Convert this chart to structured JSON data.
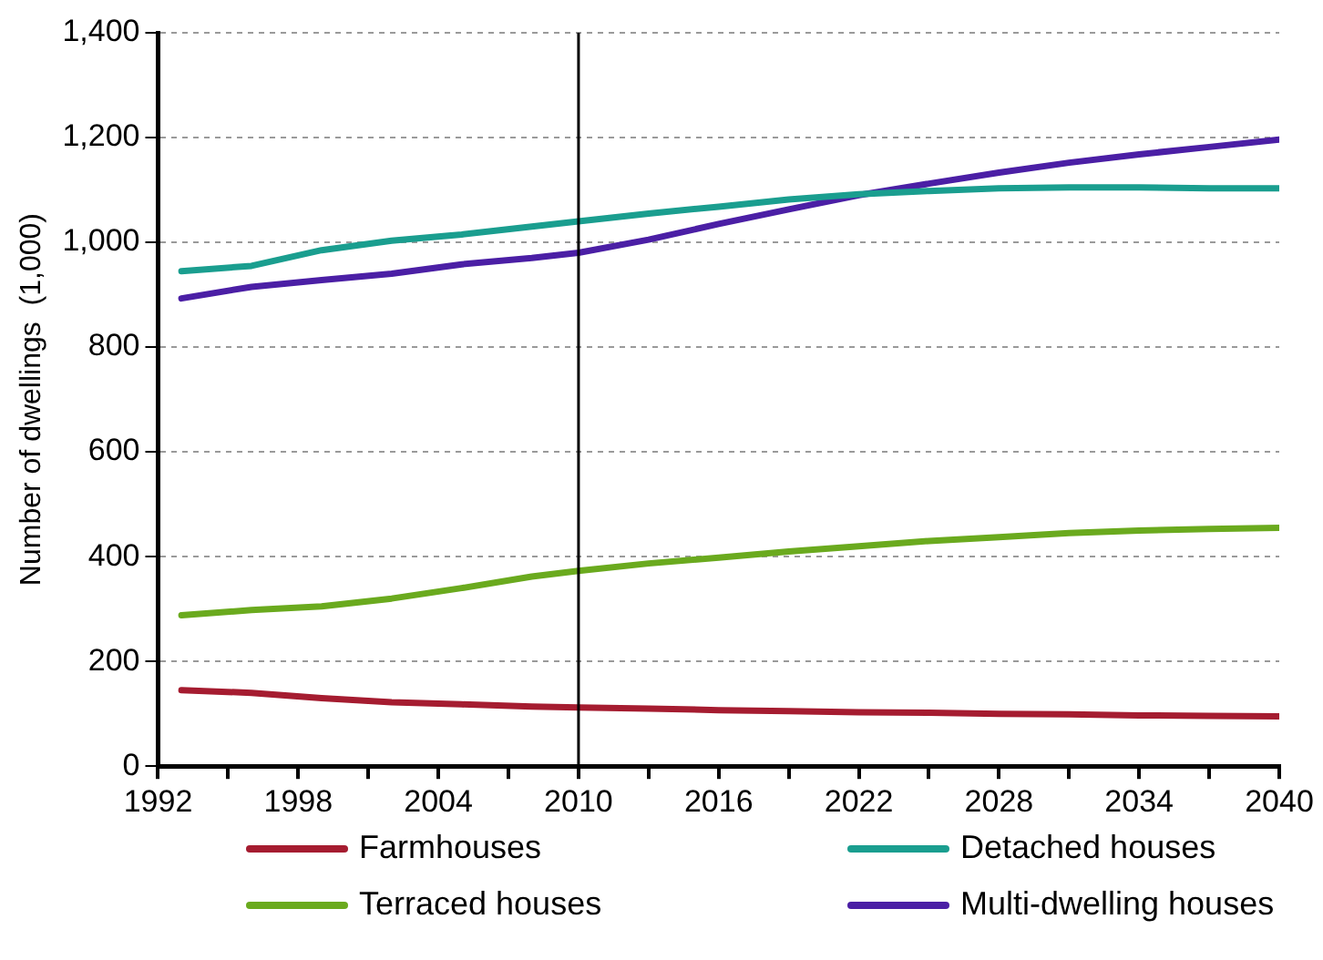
{
  "chart_data": {
    "type": "line",
    "ylabel": "Number of dwellings  (1,000)",
    "x": [
      1993,
      1996,
      1999,
      2002,
      2005,
      2008,
      2010,
      2013,
      2016,
      2019,
      2022,
      2025,
      2028,
      2031,
      2034,
      2037,
      2040
    ],
    "series": [
      {
        "name": "Farmhouses",
        "color": "#a51c30",
        "values": [
          145,
          140,
          130,
          122,
          118,
          114,
          112,
          110,
          107,
          105,
          103,
          102,
          100,
          99,
          97,
          96,
          95
        ]
      },
      {
        "name": "Detached houses",
        "color": "#1a9e8f",
        "values": [
          945,
          955,
          985,
          1003,
          1015,
          1030,
          1040,
          1055,
          1068,
          1082,
          1092,
          1098,
          1103,
          1105,
          1105,
          1103,
          1103
        ]
      },
      {
        "name": "Terraced houses",
        "color": "#6aaa1e",
        "values": [
          288,
          298,
          305,
          320,
          340,
          362,
          373,
          387,
          398,
          410,
          420,
          430,
          437,
          445,
          450,
          453,
          455
        ]
      },
      {
        "name": "Multi-dwelling houses",
        "color": "#4b1fa5",
        "values": [
          893,
          915,
          928,
          940,
          958,
          970,
          980,
          1005,
          1035,
          1063,
          1090,
          1112,
          1133,
          1152,
          1168,
          1182,
          1196
        ]
      }
    ],
    "xlim": [
      1992,
      2040
    ],
    "xticks": [
      1992,
      {
        "value": 1995,
        "label": null
      },
      1998,
      {
        "value": 2001,
        "label": null
      },
      2004,
      {
        "value": 2007,
        "label": null
      },
      2010,
      {
        "value": 2013,
        "label": null
      },
      2016,
      {
        "value": 2019,
        "label": null
      },
      2022,
      {
        "value": 2025,
        "label": null
      },
      2028,
      {
        "value": 2031,
        "label": null
      },
      2034,
      {
        "value": 2037,
        "label": null
      },
      2040
    ],
    "ylim": [
      0,
      1400
    ],
    "yticks": [
      0,
      200,
      400,
      600,
      800,
      {
        "value": 1000,
        "label": "1,000"
      },
      {
        "value": 1200,
        "label": "1,200"
      },
      {
        "value": 1400,
        "label": "1,400"
      }
    ],
    "ref_lines": [
      {
        "axis": "x",
        "value": 2010,
        "color": "#000000"
      }
    ],
    "grid": "y",
    "legend": "bottom",
    "marker": "none",
    "line_style": "solid"
  }
}
